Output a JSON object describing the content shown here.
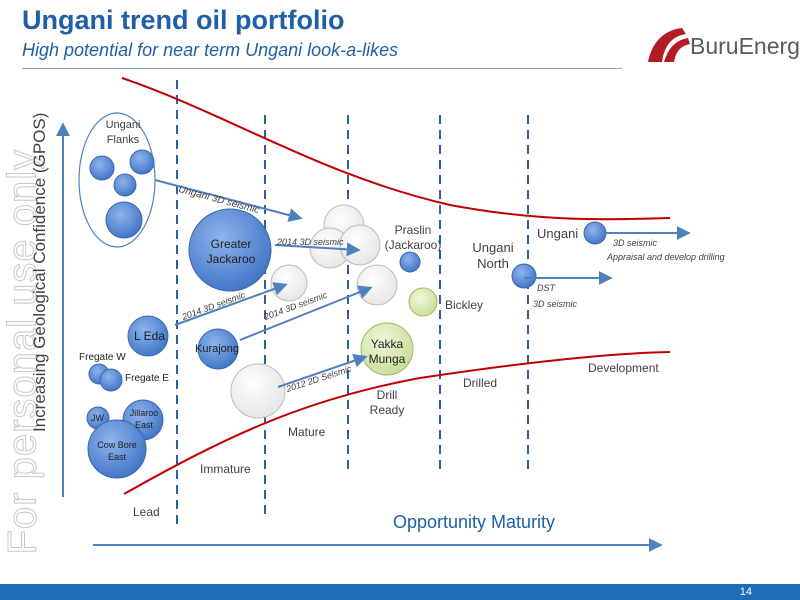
{
  "title": "Ungani trend oil portfolio",
  "subtitle": "High potential for near term Ungani look-a-likes",
  "logo_text": "BuruEnergy",
  "watermark": "For personal use only",
  "y_axis_label": "Increasing Geological Confidence (GPOS)",
  "x_axis_label": "Opportunity Maturity",
  "stages": [
    "Lead",
    "Immature",
    "Mature",
    "Drill Ready",
    "Drilled",
    "Development"
  ],
  "prospects": {
    "ungani_flanks": "Ungani Flanks",
    "greater_jackaroo": "Greater Jackaroo",
    "l_eda": "L Eda",
    "kurajong": "Kurajong",
    "fregate_w": "Fregate W",
    "fregate_e": "Fregate E",
    "jw": "JW",
    "jillaroo_east": "Jillaroo East",
    "cow_bore_east": "Cow Bore East",
    "praslin_jackaroo": "Praslin (Jackaroo)",
    "bickley": "Bickley",
    "yakka_munga": "Yakka Munga",
    "ungani_north": "Ungani North",
    "ungani": "Ungani"
  },
  "arrow_labels": {
    "ungani_3d": "Ungani 3D seismic",
    "seismic_2014_a": "2014  3D seismic",
    "seismic_2014_b": "2014  3D seismic",
    "seismic_2014_c": "2014  3D seismic",
    "seismic_2012": "2012 2D Seismic",
    "dst": "DST",
    "seismic_3d_north": "3D seismic",
    "seismic_3d_ungani": "3D seismic",
    "appraisal": "Appraisal and develop drilling"
  },
  "page_number": "14",
  "colors": {
    "title": "#1f5fa8",
    "bubble_blue": "#4a7fd0",
    "bubble_green": "#c8dfa0",
    "arrow": "#4f81bd",
    "funnel_red": "#c00000",
    "divider": "#2e5f9e",
    "footer": "#1f6db5"
  }
}
